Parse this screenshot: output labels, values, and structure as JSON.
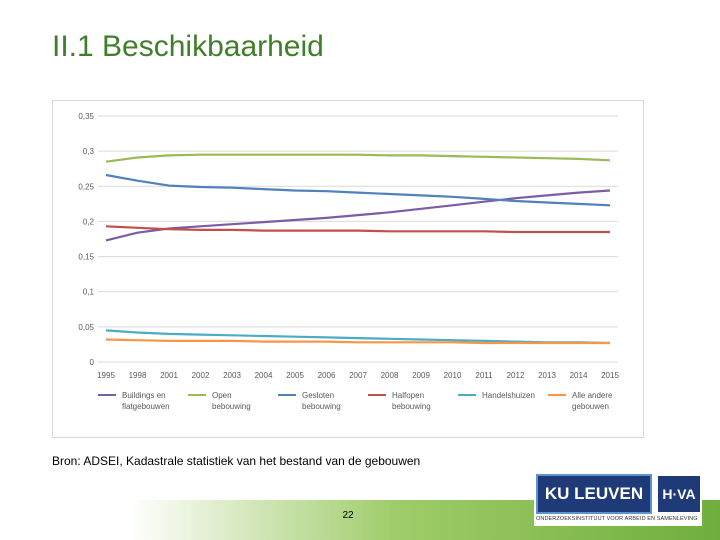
{
  "slide": {
    "title": "II.1 Beschikbaarheid",
    "source": "Bron: ADSEI, Kadastrale statistiek van het bestand van de gebouwen",
    "page_number": "22",
    "logos": {
      "ku_leuven": "KU LEUVEN",
      "hva": "H·VA",
      "subtitle": "ONDERZOEKSINSTITUUT VOOR ARBEID EN SAMENLEVING"
    }
  },
  "colors": {
    "title": "#3f7f2a",
    "grid": "#d9d9d9",
    "buildings": "#7b5ca6",
    "open": "#9bbb59",
    "gesloten": "#4f81bd",
    "halfopen": "#c0504d",
    "handelshuizen": "#4bacc6",
    "andere": "#f79646"
  },
  "chart_data": {
    "type": "line",
    "title": "",
    "xlabel": "",
    "ylabel": "",
    "ylim": [
      0,
      0.35
    ],
    "yticks": [
      "0",
      "0,05",
      "0,1",
      "0,15",
      "0,2",
      "0,25",
      "0,3",
      "0,35"
    ],
    "ytick_values": [
      0,
      0.05,
      0.1,
      0.15,
      0.2,
      0.25,
      0.3,
      0.35
    ],
    "categories": [
      "1995",
      "1998",
      "2001",
      "2002",
      "2003",
      "2004",
      "2005",
      "2006",
      "2007",
      "2008",
      "2009",
      "2010",
      "2011",
      "2012",
      "2013",
      "2014",
      "2015"
    ],
    "series": [
      {
        "key": "buildings",
        "name_lines": [
          "Buildings en",
          "flatgebouwen"
        ],
        "values": [
          0.173,
          0.184,
          0.19,
          0.193,
          0.196,
          0.199,
          0.202,
          0.205,
          0.209,
          0.213,
          0.218,
          0.223,
          0.228,
          0.233,
          0.237,
          0.241,
          0.244
        ]
      },
      {
        "key": "open",
        "name_lines": [
          "Open",
          "bebouwing"
        ],
        "values": [
          0.285,
          0.291,
          0.294,
          0.295,
          0.295,
          0.295,
          0.295,
          0.295,
          0.295,
          0.294,
          0.294,
          0.293,
          0.292,
          0.291,
          0.29,
          0.289,
          0.287
        ]
      },
      {
        "key": "gesloten",
        "name_lines": [
          "Gesloten",
          "bebouwing"
        ],
        "values": [
          0.266,
          0.258,
          0.251,
          0.249,
          0.248,
          0.246,
          0.244,
          0.243,
          0.241,
          0.239,
          0.237,
          0.235,
          0.232,
          0.229,
          0.227,
          0.225,
          0.223
        ]
      },
      {
        "key": "halfopen",
        "name_lines": [
          "Halfopen",
          "bebouwing"
        ],
        "values": [
          0.193,
          0.191,
          0.189,
          0.188,
          0.188,
          0.187,
          0.187,
          0.187,
          0.187,
          0.186,
          0.186,
          0.186,
          0.186,
          0.185,
          0.185,
          0.185,
          0.185
        ]
      },
      {
        "key": "handelshuizen",
        "name_lines": [
          "Handelshuizen"
        ],
        "values": [
          0.045,
          0.042,
          0.04,
          0.039,
          0.038,
          0.037,
          0.036,
          0.035,
          0.034,
          0.033,
          0.032,
          0.031,
          0.03,
          0.029,
          0.028,
          0.028,
          0.027
        ]
      },
      {
        "key": "andere",
        "name_lines": [
          "Alle andere",
          "gebouwen"
        ],
        "values": [
          0.032,
          0.031,
          0.03,
          0.03,
          0.03,
          0.029,
          0.029,
          0.029,
          0.028,
          0.028,
          0.028,
          0.028,
          0.027,
          0.027,
          0.027,
          0.027,
          0.027
        ]
      }
    ],
    "legend_position": "bottom",
    "grid": true
  }
}
